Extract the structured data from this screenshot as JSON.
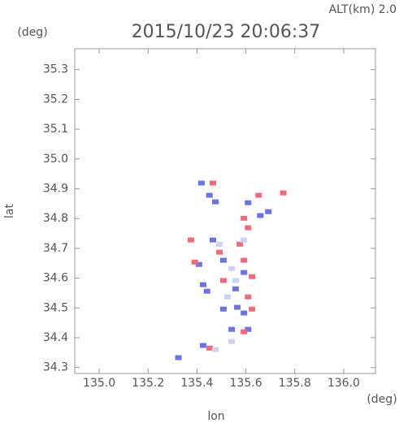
{
  "chart_data": {
    "type": "scatter",
    "title": "2015/10/23 20:06:37",
    "subtitle": "ALT(km) 2.0",
    "y_unit": "(deg)",
    "x_unit": "(deg)",
    "x_label": "lon",
    "y_label": "lat",
    "xlim": [
      134.9,
      136.13
    ],
    "ylim": [
      34.28,
      35.37
    ],
    "xticks": [
      {
        "value": 135,
        "label": "135.0"
      },
      135.2,
      135.4,
      135.6,
      135.8,
      {
        "value": 136,
        "label": "136.0"
      }
    ],
    "yticks": [
      34.3,
      34.4,
      34.5,
      34.6,
      34.7,
      34.8,
      34.9,
      {
        "value": 35,
        "label": "35.0"
      },
      35.1,
      35.2,
      35.3
    ],
    "series": [
      {
        "color": "#6a72e6",
        "x": [
          135.418,
          135.475,
          135.451,
          135.609,
          135.659,
          135.465,
          135.408,
          135.508,
          135.592,
          135.558,
          135.441,
          135.565,
          135.592,
          135.508,
          135.609,
          135.542,
          135.425,
          135.324,
          135.692,
          135.425
        ],
        "values": [
          34.919,
          34.856,
          34.878,
          34.853,
          34.81,
          34.728,
          34.646,
          34.66,
          34.619,
          34.564,
          34.556,
          34.502,
          34.483,
          34.496,
          34.428,
          34.428,
          34.374,
          34.333,
          34.823,
          34.578
        ]
      },
      {
        "color": "#f06a7a",
        "x": [
          135.465,
          135.652,
          135.753,
          135.592,
          135.609,
          135.575,
          135.592,
          135.492,
          135.391,
          135.625,
          135.508,
          135.609,
          135.625,
          135.592,
          135.452,
          135.375
        ],
        "values": [
          34.919,
          34.878,
          34.886,
          34.801,
          34.769,
          34.714,
          34.66,
          34.687,
          34.654,
          34.605,
          34.592,
          34.537,
          34.496,
          34.42,
          34.365,
          34.728
        ]
      },
      {
        "color": "#cdd3f3",
        "x": [
          135.492,
          135.542,
          135.558,
          135.525,
          135.542,
          135.475,
          135.592
        ],
        "values": [
          34.714,
          34.632,
          34.592,
          34.537,
          34.387,
          34.36,
          34.728
        ]
      }
    ]
  }
}
